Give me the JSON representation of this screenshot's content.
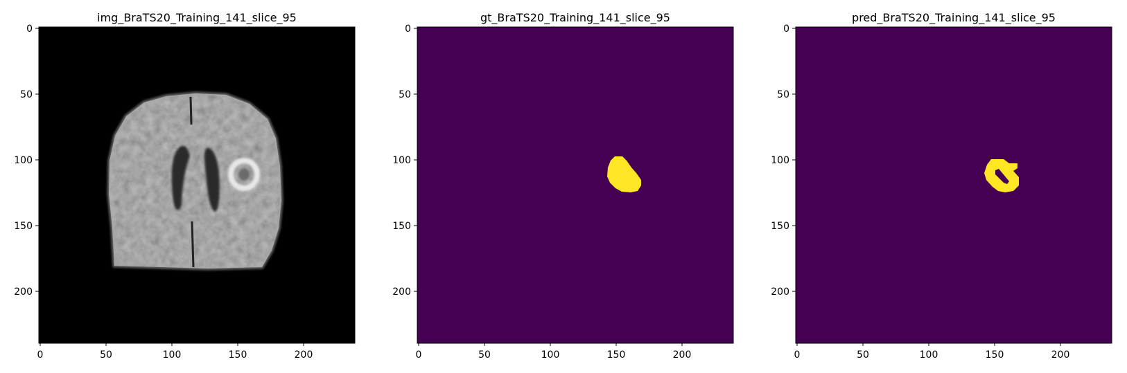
{
  "figure": {
    "panels": [
      {
        "id": "img",
        "title": "img_BraTS20_Training_141_slice_95",
        "kind": "mri",
        "background": "#000000",
        "x_ticks": [
          0,
          50,
          100,
          150,
          200
        ],
        "y_ticks": [
          0,
          50,
          100,
          150,
          200
        ],
        "extent": [
          0,
          240
        ]
      },
      {
        "id": "gt",
        "title": "gt_BraTS20_Training_141_slice_95",
        "kind": "mask",
        "background": "#440154",
        "foreground": "#fde725",
        "x_ticks": [
          0,
          50,
          100,
          150,
          200
        ],
        "y_ticks": [
          0,
          50,
          100,
          150,
          200
        ],
        "extent": [
          0,
          240
        ]
      },
      {
        "id": "pred",
        "title": "pred_BraTS20_Training_141_slice_95",
        "kind": "mask",
        "background": "#440154",
        "foreground": "#fde725",
        "x_ticks": [
          0,
          50,
          100,
          150,
          200
        ],
        "y_ticks": [
          0,
          50,
          100,
          150,
          200
        ],
        "extent": [
          0,
          240
        ]
      }
    ]
  }
}
